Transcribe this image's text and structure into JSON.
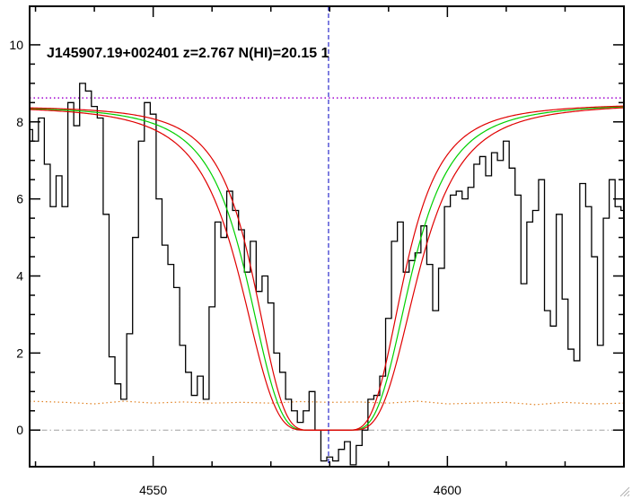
{
  "chart_data": {
    "type": "line",
    "title": "J145907.19+002401 z=2.767 N(HI)=20.15 1",
    "xlabel": "",
    "ylabel": "",
    "xlim": [
      4529,
      4630
    ],
    "ylim": [
      -0.95,
      11
    ],
    "x_ticks": [
      4550,
      4600
    ],
    "y_ticks": [
      0,
      2,
      4,
      6,
      8,
      10
    ],
    "grid": false,
    "legend": "none",
    "center_wavelength": 4579.8,
    "zero_level": 0,
    "continuum_level": 8.62,
    "flux_series": {
      "name": "flux",
      "color": "#000000",
      "drawstyle": "steps-mid",
      "x": [
        4529,
        4530,
        4531,
        4532,
        4533,
        4534,
        4535,
        4536,
        4537,
        4538,
        4539,
        4540,
        4541,
        4542,
        4543,
        4544,
        4545,
        4546,
        4547,
        4548,
        4549,
        4550,
        4551,
        4552,
        4553,
        4554,
        4555,
        4556,
        4557,
        4558,
        4559,
        4560,
        4561,
        4562,
        4563,
        4564,
        4565,
        4566,
        4567,
        4568,
        4569,
        4570,
        4571,
        4572,
        4573,
        4574,
        4575,
        4576,
        4577,
        4578,
        4579,
        4580,
        4581,
        4582,
        4583,
        4584,
        4585,
        4586,
        4587,
        4588,
        4589,
        4590,
        4591,
        4592,
        4593,
        4594,
        4595,
        4596,
        4597,
        4598,
        4599,
        4600,
        4601,
        4602,
        4603,
        4604,
        4605,
        4606,
        4607,
        4608,
        4609,
        4610,
        4611,
        4612,
        4613,
        4614,
        4615,
        4616,
        4617,
        4618,
        4619,
        4620,
        4621,
        4622,
        4623,
        4624,
        4625,
        4626,
        4627,
        4628,
        4629,
        4630
      ],
      "values": [
        7.8,
        7.5,
        8.1,
        6.9,
        5.8,
        6.6,
        5.8,
        8.5,
        7.9,
        9.0,
        8.8,
        8.4,
        8.1,
        5.6,
        1.9,
        1.2,
        0.8,
        2.5,
        5.0,
        7.5,
        8.5,
        8.2,
        6.0,
        4.8,
        4.3,
        3.7,
        2.2,
        1.5,
        0.9,
        1.4,
        0.8,
        3.2,
        5.4,
        5.0,
        6.2,
        5.7,
        5.2,
        4.1,
        4.9,
        3.6,
        4.0,
        3.3,
        2.0,
        1.5,
        0.8,
        0.5,
        0.2,
        0.5,
        1.0,
        0.0,
        -0.8,
        -0.7,
        -0.8,
        -0.5,
        -0.3,
        -0.9,
        -0.4,
        0.0,
        0.8,
        0.9,
        1.4,
        2.9,
        4.9,
        5.4,
        4.1,
        4.4,
        4.6,
        5.3,
        4.3,
        3.1,
        4.2,
        5.8,
        6.1,
        6.2,
        6.0,
        6.3,
        6.9,
        7.1,
        6.6,
        7.2,
        7.0,
        7.5,
        6.8,
        6.1,
        3.8,
        5.4,
        5.7,
        6.5,
        3.1,
        2.7,
        5.6,
        3.4,
        2.1,
        1.8,
        6.4,
        5.8,
        4.5,
        2.2,
        5.5,
        6.5,
        5.8,
        5.7
      ]
    },
    "model_series": [
      {
        "name": "",
        "color": "#00d000",
        "N_offset": 0.0
      },
      {
        "name": "",
        "color": "#e00000",
        "N_offset": 0.15
      },
      {
        "name": "",
        "color": "#e00000",
        "N_offset": -0.15
      }
    ],
    "model_params": {
      "continuum_left": 8.42,
      "continuum_right": 8.47,
      "center": 4579.8,
      "half_width_at_half_depth": 14.6,
      "core_halfwidth": 3.5
    },
    "error_series": {
      "name": "",
      "color": "#e08020",
      "linestyle": "dotted",
      "x": [
        4529,
        4535,
        4540,
        4545,
        4550,
        4555,
        4560,
        4565,
        4570,
        4575,
        4580,
        4585,
        4590,
        4595,
        4600,
        4605,
        4610,
        4615,
        4620,
        4625,
        4630
      ],
      "values": [
        0.75,
        0.72,
        0.68,
        0.75,
        0.7,
        0.73,
        0.7,
        0.72,
        0.7,
        0.74,
        0.72,
        0.73,
        0.7,
        0.75,
        0.68,
        0.7,
        0.72,
        0.66,
        0.72,
        0.68,
        0.7
      ]
    },
    "continuum_line": {
      "color": "#a000d0",
      "linestyle": "dotted",
      "value": 8.62
    },
    "zero_line": {
      "color": "#a0a0a0",
      "linestyle": "dash-dot",
      "value": 0
    },
    "center_line": {
      "color": "#0000c0",
      "linestyle": "dashed",
      "value": 4579.8
    }
  }
}
